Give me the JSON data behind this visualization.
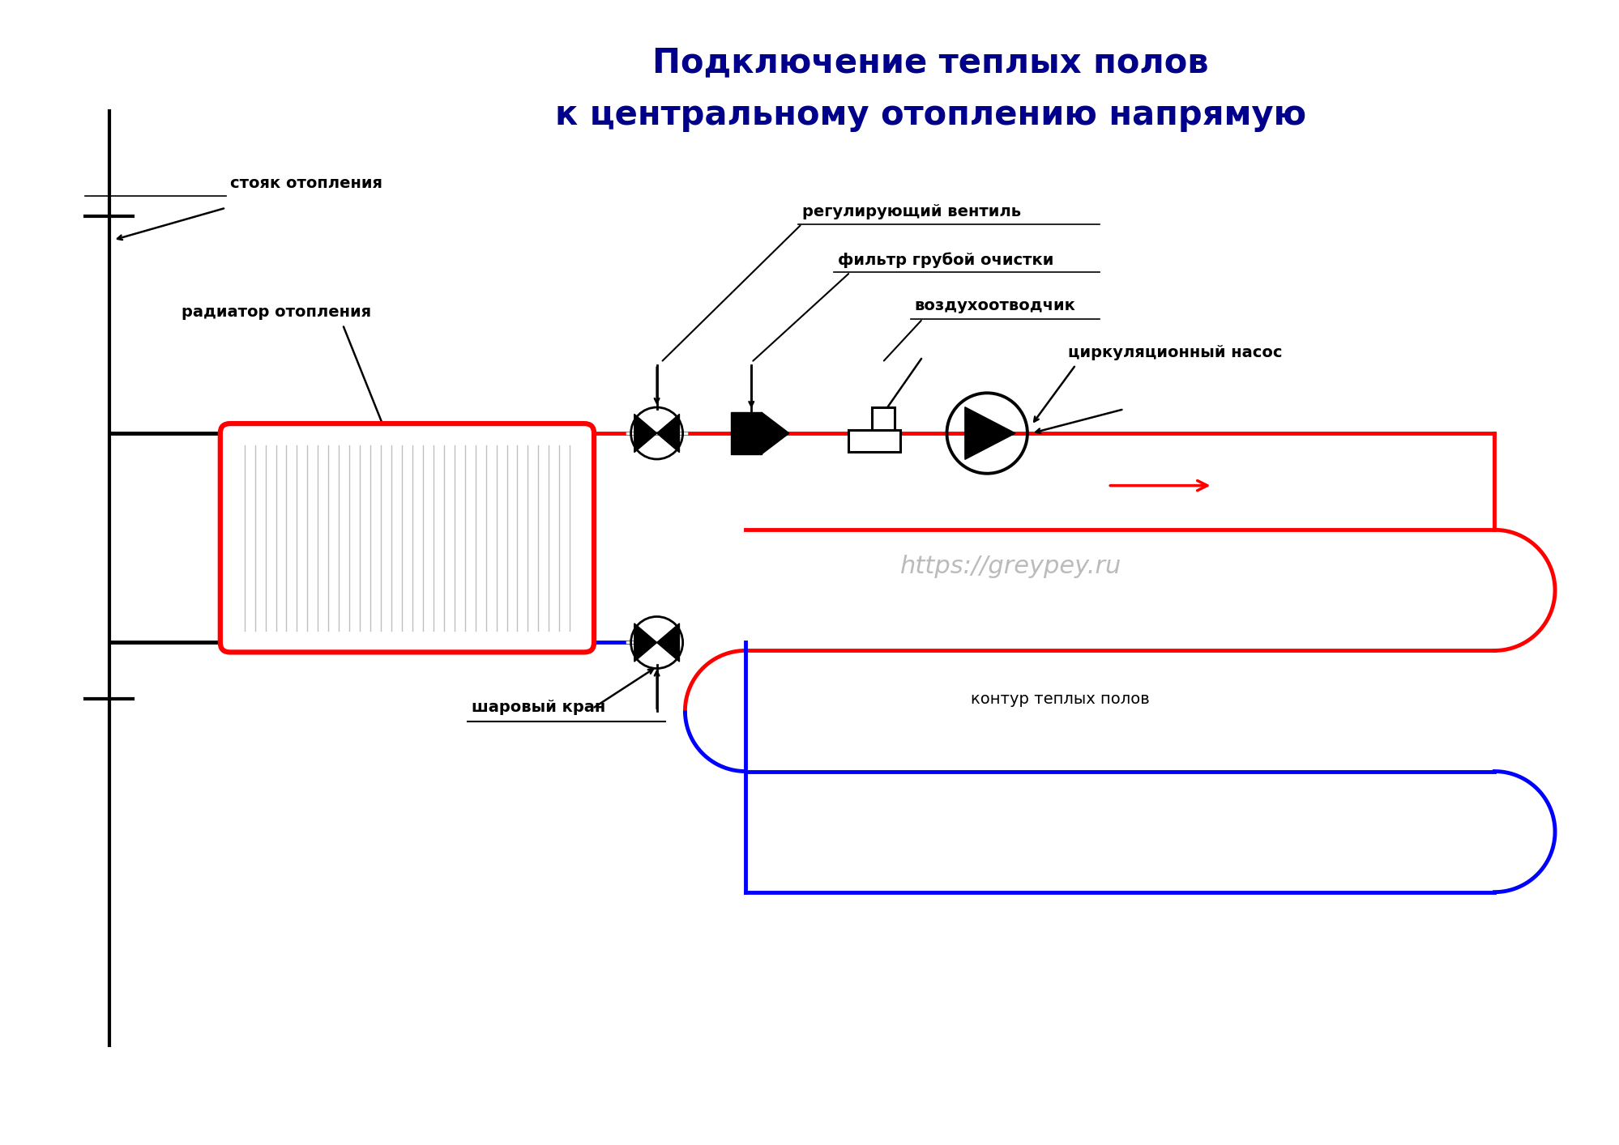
{
  "title_line1": "Подключение теплых полов",
  "title_line2": "к центральному отоплению напрямую",
  "title_color": "#00008B",
  "title_fontsize": 30,
  "bg_color": "#FFFFFF",
  "label_стояк": "стояк отопления",
  "label_радиатор": "радиатор отопления",
  "label_вентиль": "регулирующий вентиль",
  "label_фильтр": "фильтр грубой очистки",
  "label_воздух": "воздухоотводчик",
  "label_насос": "циркуляционный насос",
  "label_кран": "шаровый кран",
  "label_контур": "контур теплых полов",
  "label_url": "https://greypey.ru",
  "red_color": "#FF0000",
  "blue_color": "#0000FF",
  "black_color": "#000000",
  "gray_color": "#AAAAAA"
}
